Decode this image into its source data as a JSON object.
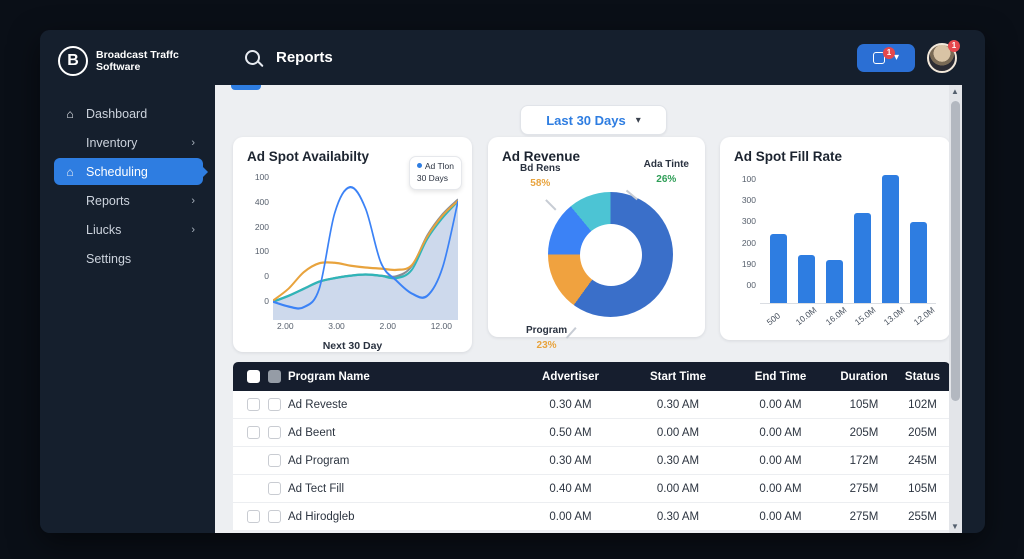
{
  "colors": {
    "accent": "#2e7de1",
    "line_blue": "#3b82f6",
    "line_orange": "#e8a33d",
    "line_teal": "#2fb5b8",
    "line_gray": "#858c96",
    "area_fill": "#cdd9ec",
    "bar_blue": "#2e7de1",
    "donut_blue": "#3a6fc9",
    "donut_orange": "#f0a23f",
    "donut_blue2": "#3b82f6",
    "donut_teal": "#4cc4d4",
    "green_pct": "#2f9e57",
    "orange_pct": "#e8a33d",
    "badge_red": "#e5484d"
  },
  "app": {
    "logo_letter": "B",
    "logo_text": "Broadcast Traffc Software"
  },
  "sidebar": {
    "items": [
      {
        "label": "Dashboard",
        "icon": "dashboard-icon",
        "active": false,
        "chevron": false
      },
      {
        "label": "Inventory",
        "icon": null,
        "active": false,
        "chevron": true
      },
      {
        "label": "Scheduling",
        "icon": "home-icon",
        "active": true,
        "chevron": false
      },
      {
        "label": "Reports",
        "icon": null,
        "active": false,
        "chevron": true
      },
      {
        "label": "Liucks",
        "icon": null,
        "active": false,
        "chevron": true
      },
      {
        "label": "Settings",
        "icon": null,
        "active": false,
        "chevron": false
      }
    ]
  },
  "topbar": {
    "title": "Reports",
    "notification_badge": "1",
    "notification_chevron": "v",
    "avatar_badge": "1"
  },
  "filter": {
    "label": "Last 30 Days",
    "chevron": "v"
  },
  "chart_data": [
    {
      "type": "line",
      "title": "Ad Spot Availabilty",
      "tooltip": {
        "line1": "Ad Tlon",
        "line2": "30 Days"
      },
      "y_ticks": [
        "100",
        "400",
        "200",
        "100",
        "0",
        "0"
      ],
      "x_ticks": [
        "2.00",
        "3.00",
        "2.00",
        "12.00"
      ],
      "xlabel": "Next 30 Day",
      "ylim": [
        -30,
        520
      ],
      "series": [
        {
          "name": "area",
          "color": "#cdd9ec",
          "fill": true,
          "values": [
            5,
            30,
            60,
            90,
            105,
            115,
            120,
            115,
            105,
            140,
            270,
            360,
            430
          ]
        },
        {
          "name": "gray",
          "color": "#858c96",
          "fill": false,
          "values": [
            5,
            30,
            60,
            90,
            105,
            115,
            120,
            115,
            112,
            155,
            285,
            375,
            438
          ]
        },
        {
          "name": "teal",
          "color": "#2fb5b8",
          "fill": false,
          "values": [
            5,
            30,
            60,
            90,
            105,
            115,
            120,
            115,
            105,
            140,
            270,
            360,
            430
          ]
        },
        {
          "name": "orange",
          "color": "#e8a33d",
          "fill": false,
          "values": [
            10,
            60,
            130,
            168,
            170,
            158,
            150,
            145,
            140,
            160,
            280,
            370,
            432
          ]
        },
        {
          "name": "blue",
          "color": "#3b82f6",
          "fill": false,
          "values": [
            5,
            -15,
            -18,
            60,
            380,
            490,
            400,
            170,
            95,
            40,
            30,
            150,
            430
          ]
        }
      ]
    },
    {
      "type": "pie",
      "title": "Ad Revenue",
      "slices": [
        {
          "name": "main",
          "fraction": 0.6,
          "color": "#3a6fc9"
        },
        {
          "name": "program",
          "fraction": 0.15,
          "color": "#f0a23f"
        },
        {
          "name": "left",
          "fraction": 0.14,
          "color": "#3b82f6"
        },
        {
          "name": "top",
          "fraction": 0.11,
          "color": "#4cc4d4"
        }
      ],
      "labels": [
        {
          "text": "Ada Tinte",
          "value": "26%",
          "value_color": "#2f9e57",
          "pos": "top-right"
        },
        {
          "text": "Bd Rens",
          "value": "58%",
          "value_color": "#e8a33d",
          "pos": "top-left"
        },
        {
          "text": "Program",
          "value": "23%",
          "value_color": "#e8a33d",
          "pos": "bottom-left"
        }
      ]
    },
    {
      "type": "bar",
      "title": "Ad Spot Fill Rate",
      "y_ticks": [
        "100",
        "300",
        "300",
        "200",
        "190",
        "00"
      ],
      "categories": [
        "500",
        "10.0M",
        "16.0M",
        "15.0M",
        "13.0M",
        "12.0M"
      ],
      "values": [
        263,
        185,
        165,
        345,
        490,
        310
      ],
      "ylim": [
        0,
        500
      ],
      "bar_color": "#2e7de1"
    }
  ],
  "table": {
    "columns": [
      "Program Name",
      "Advertiser",
      "Start Time",
      "End Time",
      "Duration",
      "Status"
    ],
    "header_checks": [
      "white",
      "filled"
    ],
    "rows": [
      {
        "checks": [
          "plain",
          "plain"
        ],
        "cells": [
          "Ad Reveste",
          "0.30 AM",
          "0.30 AM",
          "0.00 AM",
          "105M",
          "102M"
        ]
      },
      {
        "checks": [
          "plain",
          "plain"
        ],
        "cells": [
          "Ad Beent",
          "0.50 AM",
          "0.00 AM",
          "0.00 AM",
          "205M",
          "205M"
        ]
      },
      {
        "checks": [
          "ghost",
          "plain"
        ],
        "cells": [
          "Ad Program",
          "0.30 AM",
          "0.30 AM",
          "0.00 AM",
          "172M",
          "245M"
        ]
      },
      {
        "checks": [
          "ghost",
          "plain"
        ],
        "cells": [
          "Ad Tect Fill",
          "0.40 AM",
          "0.00 AM",
          "0.00 AM",
          "275M",
          "105M"
        ]
      },
      {
        "checks": [
          "plain",
          "plain"
        ],
        "cells": [
          "Ad Hirodgleb",
          "0.00 AM",
          "0.30 AM",
          "0.00 AM",
          "275M",
          "255M"
        ]
      }
    ]
  }
}
